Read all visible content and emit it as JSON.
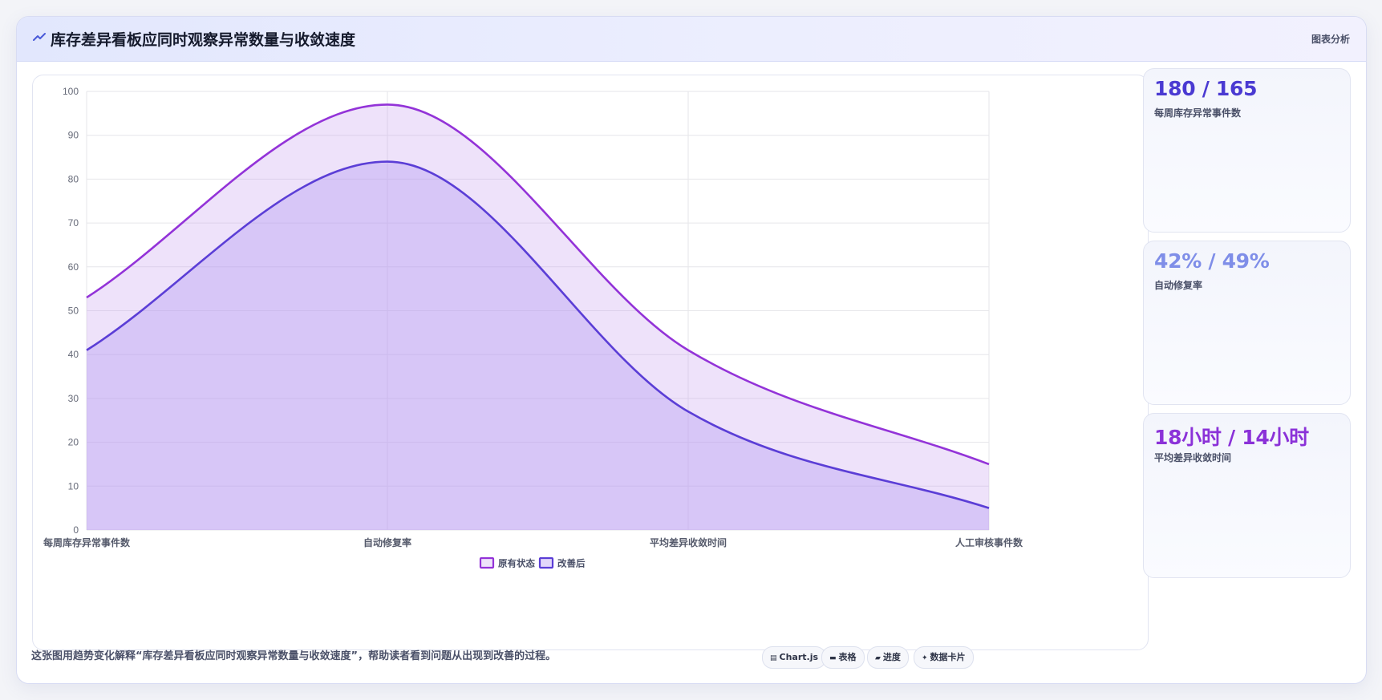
{
  "header": {
    "title": "库存差异看板应同时观察异常数量与收敛速度",
    "tag": "图表分析"
  },
  "stats": [
    {
      "value": "180 / 165",
      "label": "每周库存异常事件数",
      "color": "#4a3ad2"
    },
    {
      "value": "42% / 49%",
      "label": "自动修复率",
      "color": "#7f8ee8"
    },
    {
      "value": "18小时 / 14小时",
      "label": "平均差异收敛时间",
      "color": "#8b32d8"
    }
  ],
  "footer": {
    "description": "这张图用趋势变化解释“库存差异看板应同时观察异常数量与收敛速度”，帮助读者看到问题从出现到改善的过程。",
    "tags": [
      {
        "icon": "chart-icon",
        "glyph": "▤",
        "label": "Chart.js"
      },
      {
        "icon": "table-icon",
        "glyph": "▬",
        "label": "表格"
      },
      {
        "icon": "progress-icon",
        "glyph": "▰",
        "label": "进度"
      },
      {
        "icon": "data-card-icon",
        "glyph": "✦",
        "label": "数据卡片"
      }
    ]
  },
  "chart_data": {
    "type": "area",
    "categories": [
      "每周库存异常事件数",
      "自动修复率",
      "平均差异收敛时间",
      "人工审核事件数"
    ],
    "ylim": [
      0,
      100
    ],
    "yticks": [
      0,
      10,
      20,
      30,
      40,
      50,
      60,
      70,
      80,
      90,
      100
    ],
    "grid": true,
    "legend_position": "bottom",
    "series": [
      {
        "name": "原有状态",
        "values": [
          53,
          97,
          41,
          15
        ],
        "color": "#9333d8",
        "fill": "rgba(200, 160, 238, 0.30)"
      },
      {
        "name": "改善后",
        "values": [
          41,
          84,
          27,
          5
        ],
        "color": "#5b3ed6",
        "fill": "rgba(178, 152, 242, 0.38)"
      }
    ]
  }
}
